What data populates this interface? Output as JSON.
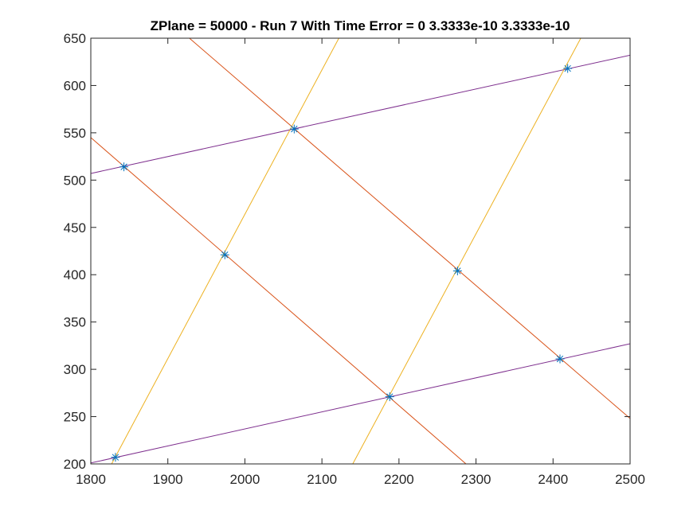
{
  "chart_data": {
    "type": "line",
    "title": "ZPlane = 50000 - Run 7 With Time Error = 0  3.3333e-10  3.3333e-10",
    "xlabel": "",
    "ylabel": "",
    "xlim": [
      1800,
      2500
    ],
    "ylim": [
      200,
      650
    ],
    "xticks": [
      "1800",
      "1900",
      "2000",
      "2100",
      "2200",
      "2300",
      "2400",
      "2500"
    ],
    "yticks": [
      "200",
      "250",
      "300",
      "350",
      "400",
      "450",
      "500",
      "550",
      "600",
      "650"
    ],
    "grid": false,
    "legend": "none",
    "colors": {
      "axes": "#262626",
      "orange_lines": "#D95319",
      "yellow_lines": "#EDB120",
      "purple_lines": "#7E2F8E",
      "markers": "#0072BD"
    },
    "series": [
      {
        "color": "#7E2F8E",
        "points": [
          [
            1800,
            507
          ],
          [
            2500,
            632
          ]
        ]
      },
      {
        "color": "#7E2F8E",
        "points": [
          [
            1800,
            201
          ],
          [
            2500,
            327
          ]
        ]
      },
      {
        "color": "#D95319",
        "points": [
          [
            1800,
            545
          ],
          [
            2287,
            200
          ]
        ]
      },
      {
        "color": "#D95319",
        "points": [
          [
            1928,
            650
          ],
          [
            2500,
            248
          ]
        ]
      },
      {
        "color": "#EDB120",
        "points": [
          [
            1827,
            200
          ],
          [
            2122,
            650
          ]
        ]
      },
      {
        "color": "#EDB120",
        "points": [
          [
            2140,
            200
          ],
          [
            2436,
            650
          ]
        ]
      }
    ],
    "markers": {
      "symbol": "asterisk",
      "points": [
        [
          1832,
          207
        ],
        [
          1843,
          514
        ],
        [
          1974,
          421
        ],
        [
          2064,
          554
        ],
        [
          2188,
          271
        ],
        [
          2276,
          404
        ],
        [
          2409,
          311
        ],
        [
          2419,
          618
        ]
      ]
    }
  }
}
